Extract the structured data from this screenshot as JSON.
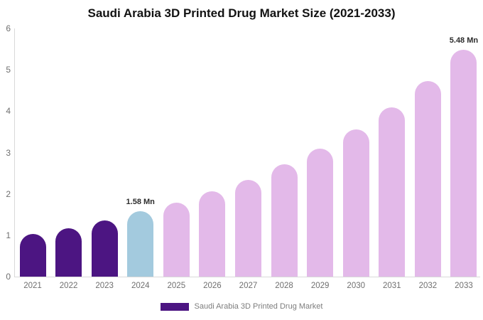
{
  "title": "Saudi Arabia 3D Printed Drug Market Size (2021-2033)",
  "colors": {
    "purple": "#4C1582",
    "blue": "#A3CADE",
    "pink": "#E3B9E9",
    "axis_line": "#D9D9D9",
    "tick_text": "#6F6F6F",
    "annotation_text": "#2B2B2B",
    "title_text": "#121212",
    "legend_text": "#7D7D7D"
  },
  "legend": {
    "label": "Saudi Arabia 3D Printed Drug Market",
    "swatch_color": "#4C1582"
  },
  "chart_data": {
    "type": "bar",
    "title": "Saudi Arabia 3D Printed Drug Market Size (2021-2033)",
    "categories": [
      "2021",
      "2022",
      "2023",
      "2024",
      "2025",
      "2026",
      "2027",
      "2028",
      "2029",
      "2030",
      "2031",
      "2032",
      "2033"
    ],
    "values": [
      1.03,
      1.17,
      1.35,
      1.58,
      1.79,
      2.06,
      2.34,
      2.71,
      3.09,
      3.56,
      4.09,
      4.72,
      5.48
    ],
    "unit": "Mn",
    "bar_color_keys": [
      "purple",
      "purple",
      "purple",
      "blue",
      "pink",
      "pink",
      "pink",
      "pink",
      "pink",
      "pink",
      "pink",
      "pink",
      "pink"
    ],
    "xlabel": "",
    "ylabel": "",
    "ylim": [
      0,
      6
    ],
    "yticks": [
      0,
      1,
      2,
      3,
      4,
      5,
      6
    ],
    "grid": false,
    "legend_position": "bottom",
    "annotations": [
      {
        "category": "2024",
        "text": "1.58 Mn"
      },
      {
        "category": "2033",
        "text": "5.48 Mn"
      }
    ],
    "series": [
      {
        "name": "Saudi Arabia 3D Printed Drug Market",
        "values": [
          1.03,
          1.17,
          1.35,
          1.58,
          1.79,
          2.06,
          2.34,
          2.71,
          3.09,
          3.56,
          4.09,
          4.72,
          5.48
        ]
      }
    ]
  }
}
